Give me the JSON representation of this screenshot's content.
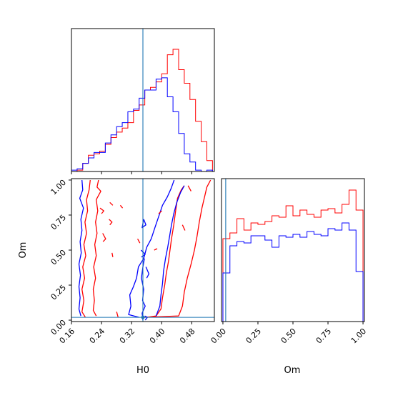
{
  "chart_data": {
    "type": "corner",
    "colors": {
      "red": "#ff0000",
      "blue": "#0000ff",
      "truth": "#1f77b4",
      "axis": "#000000"
    },
    "truth": {
      "H0": 0.35,
      "Om": 0.02
    },
    "parameters": [
      {
        "name": "H0",
        "range": [
          0.16,
          0.54
        ],
        "ticks": [
          "0.16",
          "0.24",
          "0.32",
          "0.40",
          "0.48"
        ],
        "tick_values": [
          0.16,
          0.24,
          0.32,
          0.4,
          0.48
        ]
      },
      {
        "name": "Om",
        "range": [
          -0.01,
          1.01
        ],
        "ticks": [
          "0.00",
          "0.25",
          "0.50",
          "0.75",
          "1.00"
        ],
        "tick_values": [
          0.0,
          0.25,
          0.5,
          0.75,
          1.0
        ]
      }
    ],
    "hist_H0": {
      "bin_edges": [
        0.16,
        0.175,
        0.19,
        0.205,
        0.22,
        0.235,
        0.25,
        0.265,
        0.28,
        0.295,
        0.31,
        0.325,
        0.34,
        0.355,
        0.37,
        0.385,
        0.4,
        0.415,
        0.43,
        0.445,
        0.46,
        0.475,
        0.49,
        0.505,
        0.52,
        0.535
      ],
      "series": [
        {
          "color": "red",
          "counts": [
            0.0,
            0.01,
            0.06,
            0.12,
            0.13,
            0.15,
            0.2,
            0.25,
            0.29,
            0.32,
            0.36,
            0.45,
            0.49,
            0.6,
            0.62,
            0.66,
            0.72,
            0.86,
            0.9,
            0.75,
            0.65,
            0.53,
            0.37,
            0.22,
            0.08
          ]
        },
        {
          "color": "blue",
          "counts": [
            0.01,
            0.02,
            0.06,
            0.1,
            0.14,
            0.14,
            0.21,
            0.27,
            0.33,
            0.36,
            0.44,
            0.46,
            0.54,
            0.6,
            0.6,
            0.68,
            0.69,
            0.55,
            0.44,
            0.28,
            0.13,
            0.07,
            0.01,
            0.0,
            0.01
          ]
        }
      ]
    },
    "hist_Om": {
      "bin_edges": [
        0.0,
        0.05,
        0.1,
        0.15,
        0.2,
        0.25,
        0.3,
        0.35,
        0.4,
        0.45,
        0.5,
        0.55,
        0.6,
        0.65,
        0.7,
        0.75,
        0.8,
        0.85,
        0.9,
        0.95,
        1.0
      ],
      "series": [
        {
          "color": "red",
          "counts": [
            0.58,
            0.62,
            0.72,
            0.64,
            0.69,
            0.68,
            0.7,
            0.74,
            0.73,
            0.81,
            0.74,
            0.78,
            0.75,
            0.73,
            0.78,
            0.79,
            0.76,
            0.82,
            0.92,
            0.78
          ]
        },
        {
          "color": "blue",
          "counts": [
            0.34,
            0.53,
            0.56,
            0.55,
            0.6,
            0.6,
            0.57,
            0.52,
            0.6,
            0.59,
            0.61,
            0.59,
            0.63,
            0.61,
            0.6,
            0.65,
            0.64,
            0.69,
            0.64,
            0.35
          ]
        }
      ]
    },
    "contours_2d": [
      {
        "color": "red",
        "level": "outer-left",
        "points": [
          [
            0.21,
            1.0
          ],
          [
            0.207,
            0.93
          ],
          [
            0.2,
            0.86
          ],
          [
            0.203,
            0.78
          ],
          [
            0.196,
            0.7
          ],
          [
            0.2,
            0.62
          ],
          [
            0.193,
            0.54
          ],
          [
            0.198,
            0.46
          ],
          [
            0.19,
            0.38
          ],
          [
            0.195,
            0.3
          ],
          [
            0.188,
            0.22
          ],
          [
            0.193,
            0.14
          ],
          [
            0.188,
            0.06
          ],
          [
            0.197,
            0.02
          ]
        ]
      },
      {
        "color": "red",
        "level": "inner-left",
        "points": [
          [
            0.232,
            1.0
          ],
          [
            0.228,
            0.95
          ],
          [
            0.238,
            0.92
          ],
          [
            0.226,
            0.86
          ],
          [
            0.23,
            0.78
          ],
          [
            0.224,
            0.7
          ],
          [
            0.228,
            0.62
          ],
          [
            0.222,
            0.54
          ],
          [
            0.226,
            0.46
          ],
          [
            0.219,
            0.38
          ],
          [
            0.224,
            0.3
          ],
          [
            0.218,
            0.22
          ],
          [
            0.221,
            0.14
          ],
          [
            0.218,
            0.07
          ],
          [
            0.226,
            0.03
          ]
        ]
      },
      {
        "color": "red",
        "level": "inner-right",
        "points": [
          [
            0.36,
            0.02
          ],
          [
            0.385,
            0.03
          ],
          [
            0.398,
            0.08
          ],
          [
            0.402,
            0.16
          ],
          [
            0.408,
            0.25
          ],
          [
            0.412,
            0.33
          ],
          [
            0.418,
            0.42
          ],
          [
            0.422,
            0.5
          ],
          [
            0.426,
            0.58
          ],
          [
            0.432,
            0.68
          ],
          [
            0.437,
            0.78
          ],
          [
            0.442,
            0.87
          ],
          [
            0.452,
            0.93
          ],
          [
            0.46,
            0.96
          ]
        ]
      },
      {
        "color": "red",
        "level": "outer-right",
        "points": [
          [
            0.352,
            0.02
          ],
          [
            0.445,
            0.03
          ],
          [
            0.455,
            0.1
          ],
          [
            0.46,
            0.2
          ],
          [
            0.468,
            0.3
          ],
          [
            0.478,
            0.4
          ],
          [
            0.487,
            0.5
          ],
          [
            0.494,
            0.6
          ],
          [
            0.5,
            0.7
          ],
          [
            0.507,
            0.8
          ],
          [
            0.514,
            0.88
          ],
          [
            0.52,
            0.95
          ],
          [
            0.53,
            1.0
          ]
        ]
      },
      {
        "color": "blue",
        "level": "outer-left",
        "points": [
          [
            0.188,
            1.0
          ],
          [
            0.19,
            0.93
          ],
          [
            0.182,
            0.87
          ],
          [
            0.192,
            0.8
          ],
          [
            0.185,
            0.72
          ],
          [
            0.188,
            0.64
          ],
          [
            0.183,
            0.56
          ],
          [
            0.186,
            0.48
          ],
          [
            0.18,
            0.4
          ],
          [
            0.184,
            0.32
          ],
          [
            0.18,
            0.24
          ],
          [
            0.183,
            0.16
          ],
          [
            0.18,
            0.08
          ],
          [
            0.185,
            0.03
          ]
        ]
      },
      {
        "color": "blue",
        "level": "outer-right",
        "points": [
          [
            0.34,
            0.02
          ],
          [
            0.312,
            0.04
          ],
          [
            0.318,
            0.1
          ],
          [
            0.315,
            0.18
          ],
          [
            0.325,
            0.24
          ],
          [
            0.333,
            0.3
          ],
          [
            0.338,
            0.38
          ],
          [
            0.352,
            0.44
          ],
          [
            0.36,
            0.52
          ],
          [
            0.372,
            0.58
          ],
          [
            0.382,
            0.66
          ],
          [
            0.392,
            0.74
          ],
          [
            0.402,
            0.82
          ],
          [
            0.415,
            0.88
          ],
          [
            0.425,
            0.94
          ],
          [
            0.433,
            1.0
          ]
        ]
      },
      {
        "color": "blue",
        "level": "inner-right",
        "points": [
          [
            0.385,
            0.03
          ],
          [
            0.395,
            0.1
          ],
          [
            0.398,
            0.18
          ],
          [
            0.402,
            0.26
          ],
          [
            0.405,
            0.35
          ],
          [
            0.41,
            0.44
          ],
          [
            0.416,
            0.52
          ],
          [
            0.421,
            0.6
          ],
          [
            0.426,
            0.68
          ],
          [
            0.432,
            0.76
          ],
          [
            0.44,
            0.84
          ],
          [
            0.45,
            0.91
          ],
          [
            0.46,
            0.96
          ]
        ]
      },
      {
        "color": "blue",
        "level": "inner-left",
        "points": [
          [
            0.35,
            0.0
          ],
          [
            0.348,
            0.05
          ],
          [
            0.356,
            0.1
          ],
          [
            0.349,
            0.14
          ],
          [
            0.352,
            0.22
          ],
          [
            0.346,
            0.3
          ],
          [
            0.35,
            0.38
          ],
          [
            0.354,
            0.44
          ]
        ]
      }
    ],
    "islands_2d": [
      {
        "color": "red",
        "points": [
          [
            0.236,
            0.8
          ],
          [
            0.246,
            0.78
          ],
          [
            0.24,
            0.76
          ]
        ]
      },
      {
        "color": "red",
        "points": [
          [
            0.262,
            0.84
          ],
          [
            0.27,
            0.82
          ]
        ]
      },
      {
        "color": "red",
        "points": [
          [
            0.29,
            0.82
          ],
          [
            0.296,
            0.8
          ]
        ]
      },
      {
        "color": "red",
        "points": [
          [
            0.26,
            0.72
          ],
          [
            0.268,
            0.7
          ],
          [
            0.262,
            0.68
          ]
        ]
      },
      {
        "color": "red",
        "points": [
          [
            0.243,
            0.62
          ],
          [
            0.251,
            0.58
          ],
          [
            0.244,
            0.56
          ]
        ]
      },
      {
        "color": "red",
        "points": [
          [
            0.268,
            0.48
          ],
          [
            0.27,
            0.45
          ]
        ]
      },
      {
        "color": "red",
        "points": [
          [
            0.336,
            0.58
          ],
          [
            0.342,
            0.55
          ]
        ]
      },
      {
        "color": "red",
        "points": [
          [
            0.38,
            0.5
          ],
          [
            0.388,
            0.51
          ]
        ]
      },
      {
        "color": "red",
        "points": [
          [
            0.392,
            0.76
          ],
          [
            0.4,
            0.78
          ]
        ]
      },
      {
        "color": "red",
        "points": [
          [
            0.455,
            0.68
          ],
          [
            0.462,
            0.64
          ]
        ]
      },
      {
        "color": "red",
        "points": [
          [
            0.47,
            0.96
          ],
          [
            0.478,
            0.92
          ]
        ]
      },
      {
        "color": "red",
        "points": [
          [
            0.28,
            0.06
          ],
          [
            0.284,
            0.02
          ]
        ]
      },
      {
        "color": "blue",
        "points": [
          [
            0.352,
            0.72
          ],
          [
            0.358,
            0.68
          ],
          [
            0.348,
            0.66
          ],
          [
            0.352,
            0.72
          ]
        ]
      },
      {
        "color": "blue",
        "points": [
          [
            0.345,
            0.5
          ],
          [
            0.356,
            0.47
          ],
          [
            0.346,
            0.45
          ]
        ]
      },
      {
        "color": "blue",
        "points": [
          [
            0.358,
            0.38
          ],
          [
            0.366,
            0.33
          ],
          [
            0.36,
            0.3
          ]
        ]
      },
      {
        "color": "blue",
        "points": [
          [
            0.355,
            0.03
          ],
          [
            0.362,
            0.02
          ],
          [
            0.356,
            0.0
          ]
        ]
      }
    ]
  },
  "labels": {
    "x1": "H0",
    "x2": "Om",
    "y1": "Om"
  }
}
